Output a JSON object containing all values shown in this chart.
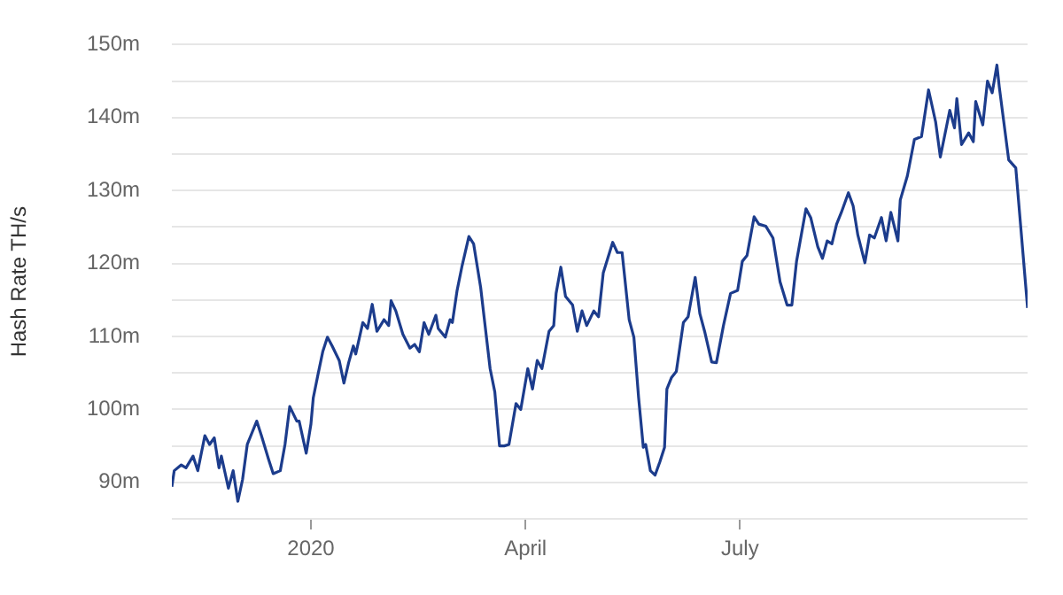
{
  "chart_data": {
    "type": "line",
    "ylabel": "Hash Rate TH/s",
    "x": [
      "2019-11-03",
      "2019-11-04",
      "2019-11-07",
      "2019-11-09",
      "2019-11-12",
      "2019-11-14",
      "2019-11-17",
      "2019-11-19",
      "2019-11-21",
      "2019-11-23",
      "2019-11-24",
      "2019-11-27",
      "2019-11-29",
      "2019-12-01",
      "2019-12-03",
      "2019-12-05",
      "2019-12-07",
      "2019-12-09",
      "2019-12-11",
      "2019-12-14",
      "2019-12-16",
      "2019-12-19",
      "2019-12-21",
      "2019-12-23",
      "2019-12-26",
      "2019-12-27",
      "2019-12-30",
      "2020-01-01",
      "2020-01-02",
      "2020-01-04",
      "2020-01-06",
      "2020-01-08",
      "2020-01-10",
      "2020-01-13",
      "2020-01-15",
      "2020-01-17",
      "2020-01-19",
      "2020-01-20",
      "2020-01-23",
      "2020-01-25",
      "2020-01-27",
      "2020-01-29",
      "2020-02-01",
      "2020-02-03",
      "2020-02-04",
      "2020-02-06",
      "2020-02-09",
      "2020-02-12",
      "2020-02-14",
      "2020-02-16",
      "2020-02-18",
      "2020-02-20",
      "2020-02-23",
      "2020-02-24",
      "2020-02-27",
      "2020-02-29",
      "2020-03-01",
      "2020-03-03",
      "2020-03-05",
      "2020-03-08",
      "2020-03-10",
      "2020-03-13",
      "2020-03-17",
      "2020-03-19",
      "2020-03-21",
      "2020-03-23",
      "2020-03-25",
      "2020-03-28",
      "2020-03-30",
      "2020-04-02",
      "2020-04-04",
      "2020-04-06",
      "2020-04-08",
      "2020-04-11",
      "2020-04-13",
      "2020-04-14",
      "2020-04-16",
      "2020-04-18",
      "2020-04-21",
      "2020-04-23",
      "2020-04-25",
      "2020-04-27",
      "2020-04-30",
      "2020-05-02",
      "2020-05-04",
      "2020-05-08",
      "2020-05-10",
      "2020-05-12",
      "2020-05-15",
      "2020-05-17",
      "2020-05-19",
      "2020-05-21",
      "2020-05-22",
      "2020-05-24",
      "2020-05-26",
      "2020-05-28",
      "2020-05-30",
      "2020-05-31",
      "2020-06-02",
      "2020-06-04",
      "2020-06-07",
      "2020-06-09",
      "2020-06-12",
      "2020-06-14",
      "2020-06-16",
      "2020-06-19",
      "2020-06-21",
      "2020-06-24",
      "2020-06-27",
      "2020-06-30",
      "2020-07-02",
      "2020-07-04",
      "2020-07-07",
      "2020-07-09",
      "2020-07-12",
      "2020-07-15",
      "2020-07-18",
      "2020-07-21",
      "2020-07-23",
      "2020-07-25",
      "2020-07-29",
      "2020-07-31",
      "2020-08-03",
      "2020-08-05",
      "2020-08-07",
      "2020-08-09",
      "2020-08-11",
      "2020-08-13",
      "2020-08-16",
      "2020-08-18",
      "2020-08-20",
      "2020-08-23",
      "2020-08-25",
      "2020-08-27",
      "2020-08-30",
      "2020-09-01",
      "2020-09-03",
      "2020-09-06",
      "2020-09-07",
      "2020-09-10",
      "2020-09-13",
      "2020-09-16",
      "2020-09-19",
      "2020-09-22",
      "2020-09-24",
      "2020-09-28",
      "2020-09-30",
      "2020-10-01",
      "2020-10-03",
      "2020-10-06",
      "2020-10-08",
      "2020-10-09",
      "2020-10-12",
      "2020-10-14",
      "2020-10-16",
      "2020-10-18",
      "2020-10-19",
      "2020-10-23",
      "2020-10-26",
      "2020-10-31"
    ],
    "series": [
      {
        "color": "#1c3c8c",
        "values": [
          89.4,
          91.6,
          92.4,
          92,
          93.6,
          91.6,
          96.4,
          95.2,
          96.1,
          92,
          93.6,
          89.2,
          91.6,
          87.4,
          90.4,
          95.2,
          96.8,
          98.4,
          96.4,
          93.2,
          91.2,
          91.6,
          95.2,
          100.4,
          98.4,
          98.4,
          94,
          98,
          101.6,
          104.8,
          107.9,
          109.9,
          108.7,
          106.7,
          103.6,
          106.4,
          108.7,
          107.6,
          111.9,
          111.1,
          114.4,
          110.7,
          112.3,
          111.5,
          114.9,
          113.5,
          110.3,
          108.4,
          108.9,
          107.9,
          111.9,
          110.3,
          112.9,
          111.1,
          109.9,
          112.3,
          111.9,
          116.3,
          119.5,
          123.7,
          122.7,
          116.7,
          105.6,
          102.4,
          95,
          95,
          95.2,
          100.8,
          100,
          105.6,
          102.8,
          106.7,
          105.6,
          110.7,
          111.5,
          115.9,
          119.5,
          115.5,
          114.3,
          110.7,
          113.5,
          111.5,
          113.5,
          112.7,
          118.7,
          122.9,
          121.5,
          121.5,
          112.3,
          109.9,
          101.6,
          94.8,
          95.2,
          91.6,
          91,
          92.8,
          94.8,
          102.8,
          104.4,
          105.2,
          111.9,
          112.7,
          118.1,
          113.1,
          110.7,
          106.5,
          106.4,
          111.5,
          115.9,
          116.3,
          120.3,
          121.1,
          126.4,
          125.4,
          125.1,
          123.5,
          117.5,
          114.3,
          114.3,
          120.3,
          127.5,
          126.3,
          122.3,
          120.7,
          123.1,
          122.7,
          125.4,
          127,
          129.7,
          127.9,
          123.9,
          120.1,
          123.9,
          123.5,
          126.3,
          123.1,
          127,
          123.1,
          128.7,
          132,
          137,
          137.4,
          143.8,
          139.4,
          134.6,
          141,
          138.6,
          142.6,
          136.3,
          137.9,
          136.7,
          142.2,
          139,
          145,
          143.4,
          147.2,
          144.2,
          134.2,
          133.1,
          113.9
        ]
      }
    ],
    "xlim": [
      "2019-11-03",
      "2020-10-31"
    ],
    "xticks": [
      {
        "value": "2020-01-01",
        "label": "2020"
      },
      {
        "value": "2020-04-01",
        "label": "April"
      },
      {
        "value": "2020-07-01",
        "label": "July"
      }
    ],
    "ylim": [
      85,
      150
    ],
    "yticks": [
      {
        "value": 85,
        "label": null
      },
      {
        "value": 90,
        "label": "90m"
      },
      {
        "value": 95,
        "label": null
      },
      {
        "value": 100,
        "label": "100m"
      },
      {
        "value": 105,
        "label": null
      },
      {
        "value": 110,
        "label": "110m"
      },
      {
        "value": 115,
        "label": null
      },
      {
        "value": 120,
        "label": "120m"
      },
      {
        "value": 125,
        "label": null
      },
      {
        "value": 130,
        "label": "130m"
      },
      {
        "value": 135,
        "label": null
      },
      {
        "value": 140,
        "label": "140m"
      },
      {
        "value": 145,
        "label": null
      },
      {
        "value": 150,
        "label": "150m"
      }
    ],
    "grid": "y",
    "legend": false,
    "marker": "none",
    "line_style": "solid"
  }
}
